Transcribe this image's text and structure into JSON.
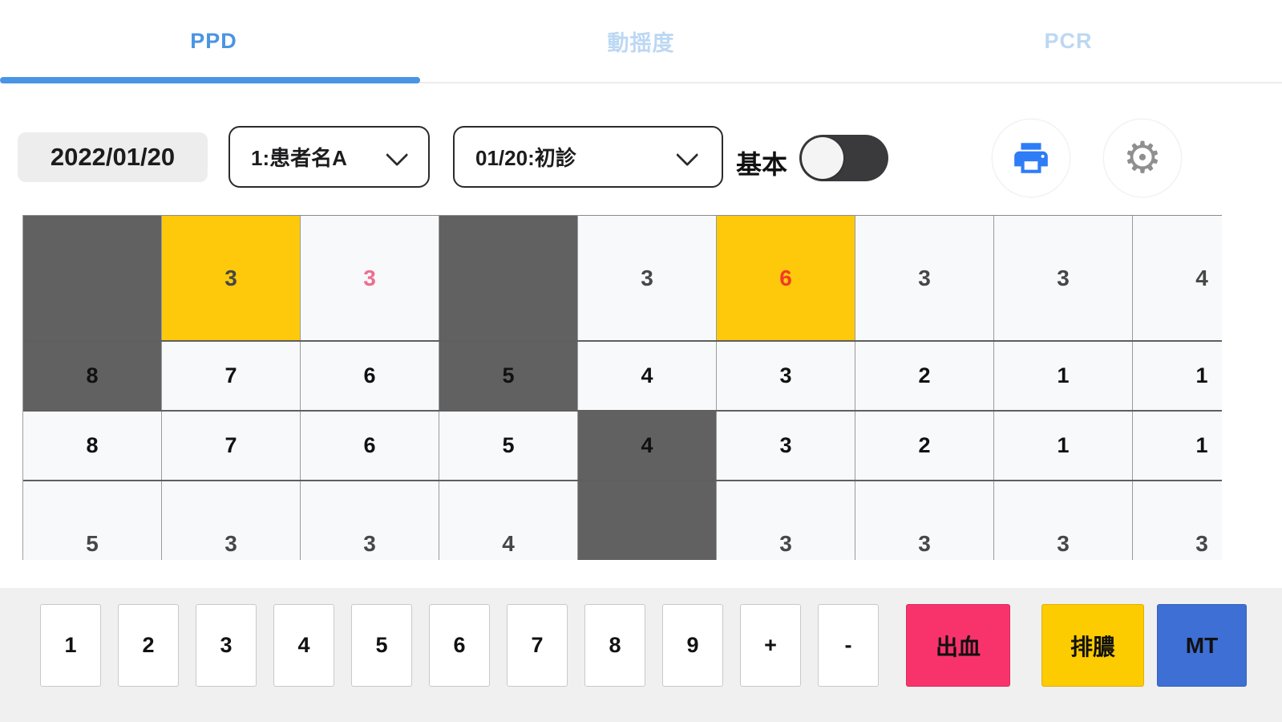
{
  "tabs": [
    {
      "label": "PPD",
      "active": true
    },
    {
      "label": "動揺度",
      "active": false
    },
    {
      "label": "PCR",
      "active": false
    }
  ],
  "toolbar": {
    "date": "2022/01/20",
    "patient_dropdown_value": "1:患者名A",
    "visit_dropdown_value": "01/20:初診",
    "toggle_label": "基本",
    "toggle_state": "off",
    "print_icon": "printer-icon",
    "settings_icon": "gear-icon",
    "gear_glyph": "⚙"
  },
  "colors": {
    "accent_blue": "#4a94e4",
    "inactive_tab": "#bcd8f2",
    "cell_gray": "#616161",
    "cell_yellow": "#ffc90b",
    "value_pink": "#ee6e8e",
    "value_red": "#f23b28",
    "print_blue": "#2e7cf6",
    "gear_gray": "#8f8f8f"
  },
  "grid": {
    "rows": [
      {
        "kind": "tall",
        "cells": [
          {
            "v": "",
            "bg": "gray"
          },
          {
            "v": "3",
            "bg": "yellow"
          },
          {
            "v": "3",
            "color": "pink"
          },
          {
            "v": "",
            "bg": "gray"
          },
          {
            "v": "3"
          },
          {
            "v": "6",
            "bg": "yellow",
            "color": "red"
          },
          {
            "v": "3"
          },
          {
            "v": "3"
          },
          {
            "v": "4"
          }
        ]
      },
      {
        "kind": "short",
        "cells": [
          {
            "v": "8",
            "bg": "gray"
          },
          {
            "v": "7"
          },
          {
            "v": "6"
          },
          {
            "v": "5",
            "bg": "gray"
          },
          {
            "v": "4"
          },
          {
            "v": "3"
          },
          {
            "v": "2"
          },
          {
            "v": "1"
          },
          {
            "v": "1"
          }
        ]
      },
      {
        "kind": "short",
        "cells": [
          {
            "v": "8"
          },
          {
            "v": "7"
          },
          {
            "v": "6"
          },
          {
            "v": "5"
          },
          {
            "v": "4",
            "bg": "gray"
          },
          {
            "v": "3"
          },
          {
            "v": "2"
          },
          {
            "v": "1"
          },
          {
            "v": "1"
          }
        ]
      },
      {
        "kind": "tall",
        "cells": [
          {
            "v": "5"
          },
          {
            "v": "3"
          },
          {
            "v": "3"
          },
          {
            "v": "4"
          },
          {
            "v": "",
            "bg": "gray"
          },
          {
            "v": "3"
          },
          {
            "v": "3"
          },
          {
            "v": "3"
          },
          {
            "v": "3"
          }
        ]
      }
    ]
  },
  "keypad": {
    "keys": [
      "1",
      "2",
      "3",
      "4",
      "5",
      "6",
      "7",
      "8",
      "9",
      "+",
      "-"
    ],
    "special_keys": [
      {
        "label": "出血",
        "bg": "#f8336b"
      },
      {
        "label": "排膿",
        "bg": "#fccb00"
      },
      {
        "label": "MT",
        "bg": "#3e6fd4"
      }
    ]
  }
}
